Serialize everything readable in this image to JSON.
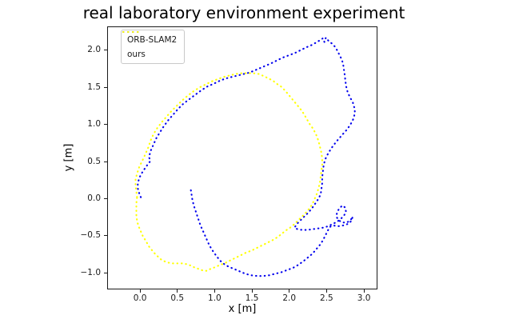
{
  "title": "real laboratory environment experiment",
  "axes": {
    "xlabel": "x [m]",
    "ylabel": "y [m]",
    "x_tick_labels": [
      "0.0",
      "0.5",
      "1.0",
      "1.5",
      "2.0",
      "2.5",
      "3.0"
    ],
    "y_tick_labels": [
      "2.0",
      "1.5",
      "1.0",
      "0.5",
      "0.0",
      "−0.5",
      "−1.0"
    ]
  },
  "chart_data": {
    "type": "line",
    "title": "real laboratory environment experiment",
    "xlabel": "x [m]",
    "ylabel": "y [m]",
    "xlim": [
      -0.44,
      3.16
    ],
    "ylim": [
      -1.2,
      2.32
    ],
    "x_tick_values": [
      0.0,
      0.5,
      1.0,
      1.5,
      2.0,
      2.5,
      3.0
    ],
    "y_tick_values": [
      2.0,
      1.5,
      1.0,
      0.5,
      0.0,
      -0.5,
      -1.0
    ],
    "grid": false,
    "legend_position": "upper left",
    "line_style": "dotted",
    "series": [
      {
        "name": "ORB-SLAM2",
        "color": "#0000ee",
        "points": [
          [
            0.0,
            0.03
          ],
          [
            -0.02,
            0.08
          ],
          [
            -0.04,
            0.15
          ],
          [
            -0.04,
            0.22
          ],
          [
            -0.02,
            0.29
          ],
          [
            0.01,
            0.35
          ],
          [
            0.05,
            0.41
          ],
          [
            0.09,
            0.47
          ],
          [
            0.13,
            0.52
          ],
          [
            0.11,
            0.57
          ],
          [
            0.13,
            0.65
          ],
          [
            0.17,
            0.74
          ],
          [
            0.21,
            0.83
          ],
          [
            0.26,
            0.91
          ],
          [
            0.31,
            0.99
          ],
          [
            0.37,
            1.07
          ],
          [
            0.44,
            1.15
          ],
          [
            0.5,
            1.22
          ],
          [
            0.57,
            1.29
          ],
          [
            0.65,
            1.35
          ],
          [
            0.73,
            1.41
          ],
          [
            0.81,
            1.47
          ],
          [
            0.89,
            1.52
          ],
          [
            0.98,
            1.56
          ],
          [
            1.06,
            1.6
          ],
          [
            1.14,
            1.63
          ],
          [
            1.22,
            1.65
          ],
          [
            1.3,
            1.67
          ],
          [
            1.38,
            1.69
          ],
          [
            1.46,
            1.71
          ],
          [
            1.53,
            1.74
          ],
          [
            1.6,
            1.77
          ],
          [
            1.67,
            1.8
          ],
          [
            1.74,
            1.83
          ],
          [
            1.82,
            1.87
          ],
          [
            1.9,
            1.91
          ],
          [
            1.98,
            1.94
          ],
          [
            2.06,
            1.97
          ],
          [
            2.14,
            2.01
          ],
          [
            2.22,
            2.05
          ],
          [
            2.29,
            2.08
          ],
          [
            2.36,
            2.12
          ],
          [
            2.41,
            2.15
          ],
          [
            2.44,
            2.17
          ],
          [
            2.46,
            2.12
          ],
          [
            2.48,
            2.18
          ],
          [
            2.52,
            2.13
          ],
          [
            2.56,
            2.1
          ],
          [
            2.6,
            2.06
          ],
          [
            2.63,
            2.01
          ],
          [
            2.66,
            1.95
          ],
          [
            2.69,
            1.89
          ],
          [
            2.71,
            1.83
          ],
          [
            2.72,
            1.76
          ],
          [
            2.73,
            1.69
          ],
          [
            2.74,
            1.61
          ],
          [
            2.75,
            1.53
          ],
          [
            2.77,
            1.45
          ],
          [
            2.8,
            1.38
          ],
          [
            2.84,
            1.31
          ],
          [
            2.86,
            1.24
          ],
          [
            2.87,
            1.17
          ],
          [
            2.85,
            1.09
          ],
          [
            2.81,
            1.01
          ],
          [
            2.76,
            0.94
          ],
          [
            2.69,
            0.86
          ],
          [
            2.62,
            0.78
          ],
          [
            2.56,
            0.7
          ],
          [
            2.51,
            0.62
          ],
          [
            2.47,
            0.54
          ],
          [
            2.45,
            0.46
          ],
          [
            2.44,
            0.38
          ],
          [
            2.43,
            0.3
          ],
          [
            2.43,
            0.22
          ],
          [
            2.42,
            0.14
          ],
          [
            2.41,
            0.07
          ],
          [
            2.38,
            0.01
          ],
          [
            2.34,
            -0.05
          ],
          [
            2.3,
            -0.11
          ],
          [
            2.25,
            -0.17
          ],
          [
            2.2,
            -0.22
          ],
          [
            2.14,
            -0.28
          ],
          [
            2.09,
            -0.33
          ],
          [
            2.06,
            -0.38
          ],
          [
            2.1,
            -0.4
          ],
          [
            2.16,
            -0.41
          ],
          [
            2.23,
            -0.41
          ],
          [
            2.3,
            -0.4
          ],
          [
            2.37,
            -0.39
          ],
          [
            2.44,
            -0.38
          ],
          [
            2.51,
            -0.36
          ],
          [
            2.57,
            -0.33
          ],
          [
            2.63,
            -0.3
          ],
          [
            2.68,
            -0.26
          ],
          [
            2.72,
            -0.22
          ],
          [
            2.75,
            -0.17
          ],
          [
            2.74,
            -0.11
          ],
          [
            2.7,
            -0.08
          ],
          [
            2.66,
            -0.12
          ],
          [
            2.63,
            -0.17
          ],
          [
            2.62,
            -0.23
          ],
          [
            2.65,
            -0.28
          ],
          [
            2.7,
            -0.31
          ],
          [
            2.76,
            -0.31
          ],
          [
            2.81,
            -0.28
          ],
          [
            2.84,
            -0.23
          ],
          [
            2.82,
            -0.29
          ],
          [
            2.77,
            -0.33
          ],
          [
            2.71,
            -0.35
          ],
          [
            2.64,
            -0.36
          ],
          [
            2.58,
            -0.35
          ],
          [
            2.53,
            -0.37
          ],
          [
            2.5,
            -0.43
          ],
          [
            2.47,
            -0.49
          ],
          [
            2.44,
            -0.55
          ],
          [
            2.4,
            -0.61
          ],
          [
            2.35,
            -0.67
          ],
          [
            2.3,
            -0.73
          ],
          [
            2.24,
            -0.78
          ],
          [
            2.18,
            -0.83
          ],
          [
            2.11,
            -0.88
          ],
          [
            2.04,
            -0.92
          ],
          [
            1.96,
            -0.95
          ],
          [
            1.88,
            -0.98
          ],
          [
            1.8,
            -1.0
          ],
          [
            1.72,
            -1.02
          ],
          [
            1.64,
            -1.03
          ],
          [
            1.56,
            -1.03
          ],
          [
            1.48,
            -1.02
          ],
          [
            1.4,
            -1.0
          ],
          [
            1.33,
            -0.97
          ],
          [
            1.26,
            -0.94
          ],
          [
            1.19,
            -0.91
          ],
          [
            1.13,
            -0.88
          ],
          [
            1.07,
            -0.83
          ],
          [
            1.02,
            -0.77
          ],
          [
            0.97,
            -0.7
          ],
          [
            0.92,
            -0.62
          ],
          [
            0.88,
            -0.53
          ],
          [
            0.84,
            -0.44
          ],
          [
            0.8,
            -0.35
          ],
          [
            0.77,
            -0.26
          ],
          [
            0.74,
            -0.17
          ],
          [
            0.71,
            -0.08
          ],
          [
            0.69,
            0.0
          ],
          [
            0.68,
            0.07
          ],
          [
            0.67,
            0.13
          ],
          [
            0.64,
            0.14
          ]
        ]
      },
      {
        "name": "ours",
        "color": "#ffff00",
        "points": [
          [
            -0.05,
            0.03
          ],
          [
            -0.06,
            0.11
          ],
          [
            -0.07,
            0.19
          ],
          [
            -0.07,
            0.27
          ],
          [
            -0.05,
            0.35
          ],
          [
            -0.02,
            0.44
          ],
          [
            0.02,
            0.52
          ],
          [
            0.06,
            0.61
          ],
          [
            0.1,
            0.7
          ],
          [
            0.13,
            0.79
          ],
          [
            0.17,
            0.88
          ],
          [
            0.22,
            0.96
          ],
          [
            0.28,
            1.04
          ],
          [
            0.34,
            1.11
          ],
          [
            0.41,
            1.19
          ],
          [
            0.48,
            1.26
          ],
          [
            0.55,
            1.33
          ],
          [
            0.63,
            1.4
          ],
          [
            0.71,
            1.46
          ],
          [
            0.79,
            1.51
          ],
          [
            0.87,
            1.55
          ],
          [
            0.95,
            1.59
          ],
          [
            1.03,
            1.62
          ],
          [
            1.11,
            1.65
          ],
          [
            1.19,
            1.67
          ],
          [
            1.27,
            1.69
          ],
          [
            1.35,
            1.7
          ],
          [
            1.43,
            1.7
          ],
          [
            1.51,
            1.7
          ],
          [
            1.58,
            1.69
          ],
          [
            1.65,
            1.66
          ],
          [
            1.71,
            1.63
          ],
          [
            1.77,
            1.6
          ],
          [
            1.82,
            1.56
          ],
          [
            1.88,
            1.52
          ],
          [
            1.93,
            1.47
          ],
          [
            1.98,
            1.41
          ],
          [
            2.03,
            1.35
          ],
          [
            2.08,
            1.29
          ],
          [
            2.13,
            1.23
          ],
          [
            2.18,
            1.16
          ],
          [
            2.22,
            1.09
          ],
          [
            2.26,
            1.02
          ],
          [
            2.31,
            0.95
          ],
          [
            2.35,
            0.87
          ],
          [
            2.38,
            0.79
          ],
          [
            2.4,
            0.71
          ],
          [
            2.42,
            0.63
          ],
          [
            2.43,
            0.55
          ],
          [
            2.43,
            0.47
          ],
          [
            2.42,
            0.39
          ],
          [
            2.41,
            0.31
          ],
          [
            2.4,
            0.23
          ],
          [
            2.38,
            0.15
          ],
          [
            2.36,
            0.08
          ],
          [
            2.33,
            0.01
          ],
          [
            2.3,
            -0.06
          ],
          [
            2.26,
            -0.12
          ],
          [
            2.21,
            -0.18
          ],
          [
            2.16,
            -0.23
          ],
          [
            2.11,
            -0.28
          ],
          [
            2.06,
            -0.33
          ],
          [
            2.0,
            -0.38
          ],
          [
            1.94,
            -0.42
          ],
          [
            1.89,
            -0.46
          ],
          [
            1.84,
            -0.5
          ],
          [
            1.78,
            -0.54
          ],
          [
            1.72,
            -0.57
          ],
          [
            1.66,
            -0.6
          ],
          [
            1.6,
            -0.63
          ],
          [
            1.54,
            -0.66
          ],
          [
            1.48,
            -0.69
          ],
          [
            1.42,
            -0.71
          ],
          [
            1.36,
            -0.74
          ],
          [
            1.3,
            -0.77
          ],
          [
            1.24,
            -0.8
          ],
          [
            1.18,
            -0.83
          ],
          [
            1.12,
            -0.86
          ],
          [
            1.06,
            -0.88
          ],
          [
            1.0,
            -0.91
          ],
          [
            0.94,
            -0.93
          ],
          [
            0.89,
            -0.96
          ],
          [
            0.84,
            -0.96
          ],
          [
            0.79,
            -0.94
          ],
          [
            0.73,
            -0.92
          ],
          [
            0.67,
            -0.89
          ],
          [
            0.61,
            -0.87
          ],
          [
            0.55,
            -0.86
          ],
          [
            0.49,
            -0.86
          ],
          [
            0.43,
            -0.86
          ],
          [
            0.37,
            -0.85
          ],
          [
            0.31,
            -0.83
          ],
          [
            0.26,
            -0.8
          ],
          [
            0.22,
            -0.76
          ],
          [
            0.18,
            -0.72
          ],
          [
            0.14,
            -0.67
          ],
          [
            0.1,
            -0.62
          ],
          [
            0.07,
            -0.56
          ],
          [
            0.03,
            -0.5
          ],
          [
            0.0,
            -0.43
          ],
          [
            -0.03,
            -0.36
          ],
          [
            -0.05,
            -0.29
          ],
          [
            -0.06,
            -0.21
          ],
          [
            -0.06,
            -0.13
          ],
          [
            -0.06,
            -0.05
          ],
          [
            -0.05,
            0.03
          ]
        ]
      }
    ]
  }
}
